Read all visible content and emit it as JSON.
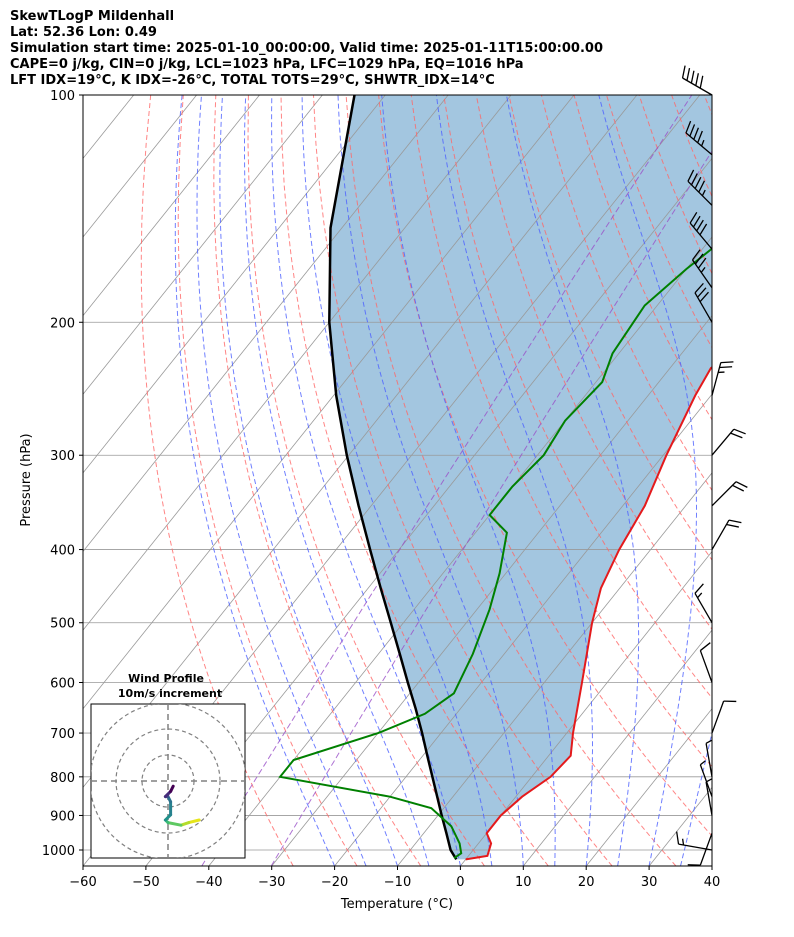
{
  "header": {
    "line1": "SkewTLogP Mildenhall",
    "line2": "Lat: 52.36   Lon: 0.49",
    "line3": "Simulation start time: 2025-01-10_00:00:00, Valid time: 2025-01-11T15:00:00.00",
    "line4": "CAPE=0 j/kg, CIN=0 j/kg, LCL=1023 hPa, LFC=1029 hPa, EQ=1016 hPa",
    "line5": "LFT IDX=19°C, K IDX=-26°C, TOTAL TOTS=29°C, SHWTR_IDX=14°C"
  },
  "chart_data": {
    "type": "skew-t",
    "xlabel": "Temperature (°C)",
    "ylabel": "Pressure (hPa)",
    "xlim": [
      -60,
      40
    ],
    "ylim": [
      1050,
      100
    ],
    "y_scale": "log",
    "x_ticks": [
      "−60",
      "−50",
      "−40",
      "−30",
      "−20",
      "−10",
      "0",
      "10",
      "20",
      "30",
      "40"
    ],
    "x_tick_values": [
      -60,
      -50,
      -40,
      -30,
      -20,
      -10,
      0,
      10,
      20,
      30,
      40
    ],
    "y_ticks": [
      "100",
      "200",
      "300",
      "400",
      "500",
      "600",
      "700",
      "800",
      "900",
      "1000"
    ],
    "y_tick_values": [
      100,
      200,
      300,
      400,
      500,
      600,
      700,
      800,
      900,
      1000
    ],
    "grid": true,
    "colors": {
      "temperature": "#e41a1c",
      "dewpoint": "#008000",
      "parcel": "#000000",
      "parcel_fill": "#a3c6e0",
      "dry_adiabats": "#ff6666",
      "moist_adiabats": "#4c60ff",
      "mixing_ratio": "#9a50c8",
      "isotherms": "#999999"
    },
    "temperature": [
      {
        "p": 1029,
        "t": 0.0
      },
      {
        "p": 1018,
        "t": 3.0
      },
      {
        "p": 980,
        "t": 2.0
      },
      {
        "p": 950,
        "t": 0.0
      },
      {
        "p": 900,
        "t": 0.0
      },
      {
        "p": 850,
        "t": 1.0
      },
      {
        "p": 800,
        "t": 3.0
      },
      {
        "p": 750,
        "t": 3.5
      },
      {
        "p": 700,
        "t": 1.0
      },
      {
        "p": 600,
        "t": -4.0
      },
      {
        "p": 500,
        "t": -10.0
      },
      {
        "p": 450,
        "t": -13.0
      },
      {
        "p": 400,
        "t": -15.0
      },
      {
        "p": 350,
        "t": -16.5
      },
      {
        "p": 300,
        "t": -19.5
      },
      {
        "p": 250,
        "t": -22.5
      },
      {
        "p": 230,
        "t": -23.5
      },
      {
        "p": 215,
        "t": -21.0
      },
      {
        "p": 200,
        "t": -17.0
      },
      {
        "p": 180,
        "t": -12.0
      },
      {
        "p": 160,
        "t": -9.5
      },
      {
        "p": 140,
        "t": -6.5
      },
      {
        "p": 120,
        "t": -3.0
      },
      {
        "p": 110,
        "t": 1.0
      },
      {
        "p": 100,
        "t": 4.0
      }
    ],
    "dewpoint": [
      {
        "p": 1025,
        "t": -2.0
      },
      {
        "p": 1010,
        "t": -1.5
      },
      {
        "p": 980,
        "t": -3.0
      },
      {
        "p": 930,
        "t": -6.5
      },
      {
        "p": 880,
        "t": -12.0
      },
      {
        "p": 850,
        "t": -20.0
      },
      {
        "p": 800,
        "t": -40.0
      },
      {
        "p": 760,
        "t": -40.0
      },
      {
        "p": 700,
        "t": -30.0
      },
      {
        "p": 660,
        "t": -25.0
      },
      {
        "p": 620,
        "t": -23.0
      },
      {
        "p": 550,
        "t": -25.0
      },
      {
        "p": 480,
        "t": -28.0
      },
      {
        "p": 430,
        "t": -31.0
      },
      {
        "p": 380,
        "t": -35.0
      },
      {
        "p": 360,
        "t": -40.0
      },
      {
        "p": 330,
        "t": -40.0
      },
      {
        "p": 300,
        "t": -39.0
      },
      {
        "p": 270,
        "t": -40.0
      },
      {
        "p": 240,
        "t": -39.0
      },
      {
        "p": 220,
        "t": -41.0
      },
      {
        "p": 190,
        "t": -42.0
      },
      {
        "p": 170,
        "t": -40.0
      },
      {
        "p": 150,
        "t": -37.0
      },
      {
        "p": 130,
        "t": -31.0
      },
      {
        "p": 115,
        "t": -26.0
      },
      {
        "p": 100,
        "t": -20.0
      }
    ],
    "parcel": [
      {
        "p": 1029,
        "t": -1.5
      },
      {
        "p": 1000,
        "t": -3.6
      },
      {
        "p": 950,
        "t": -6.4
      },
      {
        "p": 900,
        "t": -9.4
      },
      {
        "p": 850,
        "t": -12.5
      },
      {
        "p": 800,
        "t": -15.8
      },
      {
        "p": 750,
        "t": -19.3
      },
      {
        "p": 700,
        "t": -23.0
      },
      {
        "p": 650,
        "t": -27.1
      },
      {
        "p": 600,
        "t": -31.7
      },
      {
        "p": 550,
        "t": -36.6
      },
      {
        "p": 500,
        "t": -42.0
      },
      {
        "p": 450,
        "t": -48.0
      },
      {
        "p": 400,
        "t": -54.6
      },
      {
        "p": 350,
        "t": -62.0
      },
      {
        "p": 300,
        "t": -70.3
      },
      {
        "p": 250,
        "t": -79.6
      },
      {
        "p": 200,
        "t": -90.0
      },
      {
        "p": 150,
        "t": -101.8
      },
      {
        "p": 100,
        "t": -114.9
      }
    ],
    "wind_barbs": [
      {
        "p": 100,
        "speed": 50,
        "dir": 300
      },
      {
        "p": 120,
        "speed": 45,
        "dir": 310
      },
      {
        "p": 140,
        "speed": 45,
        "dir": 315
      },
      {
        "p": 160,
        "speed": 40,
        "dir": 320
      },
      {
        "p": 180,
        "speed": 35,
        "dir": 325
      },
      {
        "p": 200,
        "speed": 30,
        "dir": 330
      },
      {
        "p": 250,
        "speed": 25,
        "dir": 15
      },
      {
        "p": 300,
        "speed": 20,
        "dir": 40
      },
      {
        "p": 350,
        "speed": 20,
        "dir": 45
      },
      {
        "p": 400,
        "speed": 20,
        "dir": 30
      },
      {
        "p": 500,
        "speed": 15,
        "dir": 330
      },
      {
        "p": 600,
        "speed": 10,
        "dir": 340
      },
      {
        "p": 700,
        "speed": 10,
        "dir": 20
      },
      {
        "p": 800,
        "speed": 5,
        "dir": 350
      },
      {
        "p": 850,
        "speed": 5,
        "dir": 340
      },
      {
        "p": 900,
        "speed": 5,
        "dir": 350
      },
      {
        "p": 950,
        "speed": 10,
        "dir": 200
      },
      {
        "p": 1000,
        "speed": 15,
        "dir": 280
      }
    ],
    "inset": {
      "title": "Wind Profile",
      "subtitle": "10m/s increment",
      "rings_ms": [
        10,
        20,
        30
      ],
      "hodograph": [
        {
          "u": 12,
          "v": -15,
          "c": "#e6e51a"
        },
        {
          "u": 8,
          "v": -16,
          "c": "#b4dd2c"
        },
        {
          "u": 5,
          "v": -17,
          "c": "#5ec962"
        },
        {
          "u": 0,
          "v": -16,
          "c": "#3bbb75"
        },
        {
          "u": -1,
          "v": -15,
          "c": "#21918c"
        },
        {
          "u": 1,
          "v": -13,
          "c": "#26828e"
        },
        {
          "u": 1,
          "v": -8,
          "c": "#2c728e"
        },
        {
          "u": 0,
          "v": -6,
          "c": "#3b528b"
        },
        {
          "u": -1,
          "v": -6,
          "c": "#472d7b"
        },
        {
          "u": 1,
          "v": -4,
          "c": "#440154"
        },
        {
          "u": 2,
          "v": -2,
          "c": "#440154"
        }
      ]
    }
  }
}
